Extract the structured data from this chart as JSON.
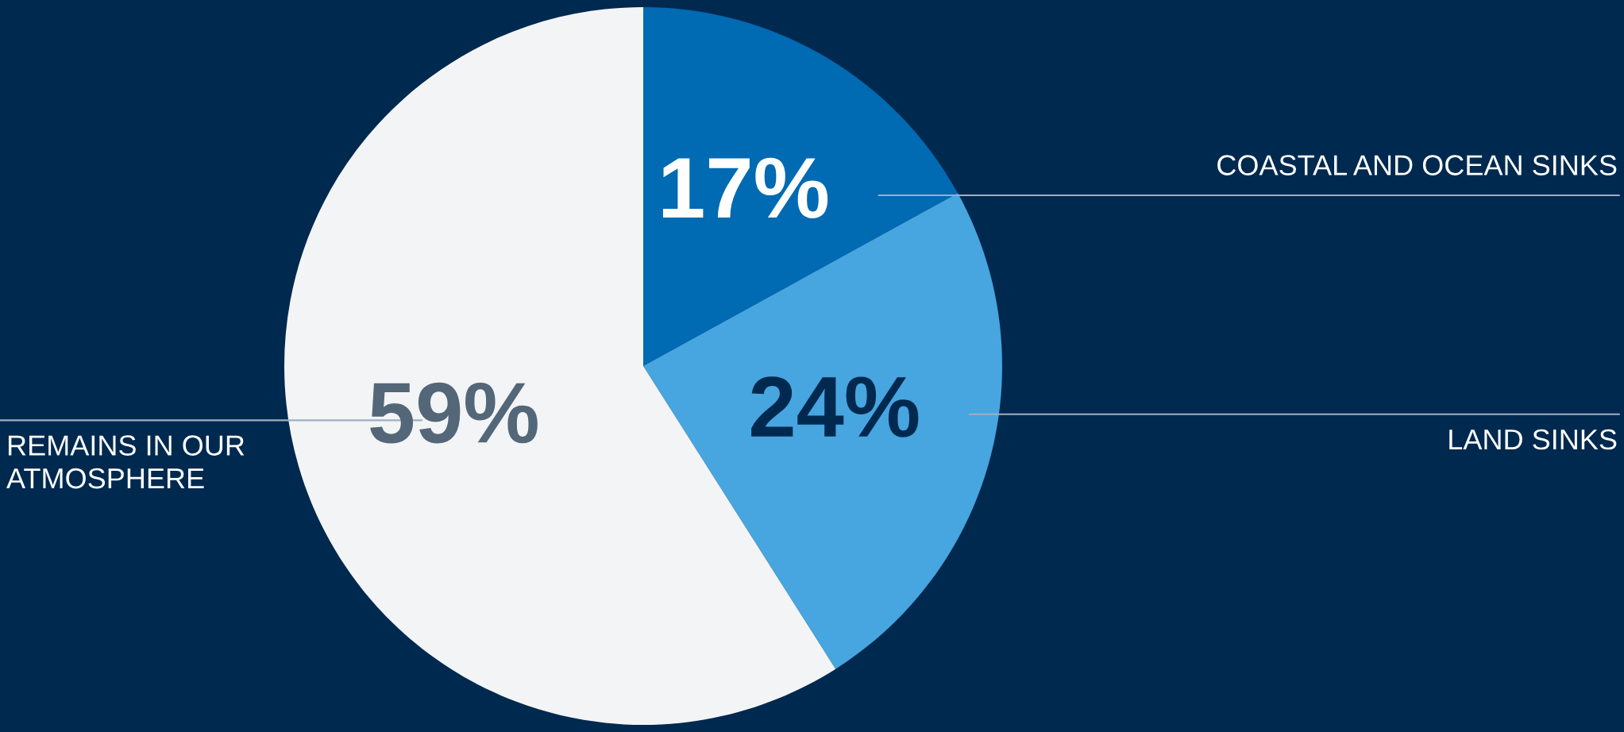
{
  "chart_data": {
    "type": "pie",
    "categories": [
      "COASTAL AND OCEAN SINKS",
      "LAND SINKS",
      "REMAINS IN OUR\nATMOSPHERE"
    ],
    "values": [
      17,
      24,
      59
    ],
    "colors": [
      "#006ab3",
      "#47a5e0",
      "#f3f4f6"
    ],
    "value_labels": [
      "17%",
      "24%",
      "59%"
    ],
    "legend": false
  }
}
